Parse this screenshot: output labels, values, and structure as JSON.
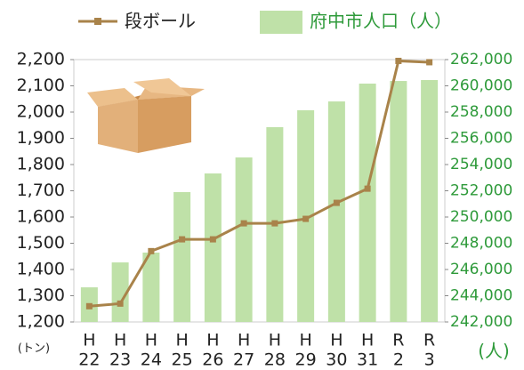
{
  "chart_data": {
    "type": "bar-line",
    "categories": [
      [
        "H",
        "22"
      ],
      [
        "H",
        "23"
      ],
      [
        "H",
        "24"
      ],
      [
        "H",
        "25"
      ],
      [
        "H",
        "26"
      ],
      [
        "H",
        "27"
      ],
      [
        "H",
        "28"
      ],
      [
        "H",
        "29"
      ],
      [
        "H",
        "30"
      ],
      [
        "H",
        "31"
      ],
      [
        "R",
        "2"
      ],
      [
        "R",
        "3"
      ]
    ],
    "series": [
      {
        "name": "段ボール",
        "type": "line",
        "color": "#a9834a",
        "axis": "y",
        "values": [
          1260,
          1270,
          1470,
          1515,
          1515,
          1576,
          1576,
          1593,
          1654,
          1708,
          2195,
          2190
        ]
      },
      {
        "name": "府中市人口（人）",
        "type": "bar",
        "color": "#bfe1a8",
        "axis": "y2",
        "values": [
          244640,
          246540,
          247290,
          251900,
          253320,
          254540,
          256850,
          258140,
          258810,
          260170,
          260370,
          260440
        ]
      }
    ],
    "ylim": [
      1200,
      2200
    ],
    "yticks": [
      {
        "value": 1200,
        "label": "1,200"
      },
      {
        "value": 1300,
        "label": "1,300"
      },
      {
        "value": 1400,
        "label": "1,400"
      },
      {
        "value": 1500,
        "label": "1,500"
      },
      {
        "value": 1600,
        "label": "1,600"
      },
      {
        "value": 1700,
        "label": "1,700"
      },
      {
        "value": 1800,
        "label": "1,800"
      },
      {
        "value": 1900,
        "label": "1,900"
      },
      {
        "value": 2000,
        "label": "2,000"
      },
      {
        "value": 2100,
        "label": "2,100"
      },
      {
        "value": 2200,
        "label": "2,200"
      }
    ],
    "y2lim": [
      242000,
      262000
    ],
    "y2ticks": [
      {
        "value": 242000,
        "label": "242,000"
      },
      {
        "value": 244000,
        "label": "244,000"
      },
      {
        "value": 246000,
        "label": "246,000"
      },
      {
        "value": 248000,
        "label": "248,000"
      },
      {
        "value": 250000,
        "label": "250,000"
      },
      {
        "value": 252000,
        "label": "252,000"
      },
      {
        "value": 254000,
        "label": "254,000"
      },
      {
        "value": 256000,
        "label": "256,000"
      },
      {
        "value": 258000,
        "label": "258,000"
      },
      {
        "value": 260000,
        "label": "260,000"
      },
      {
        "value": 262000,
        "label": "262,000"
      }
    ],
    "y_unit": "(トン)",
    "y2_unit": "(人)"
  }
}
